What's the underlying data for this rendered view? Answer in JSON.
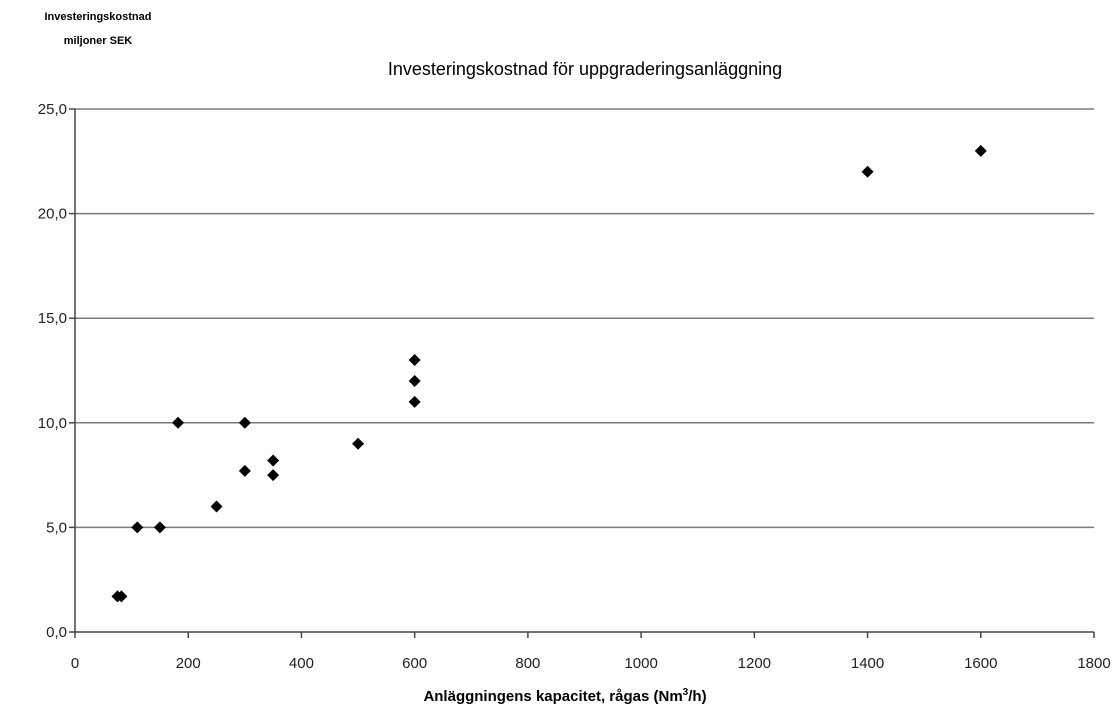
{
  "chart_data": {
    "type": "scatter",
    "title": "Investeringskostnad för uppgraderingsanläggning",
    "ylabel_lines": [
      "Investeringskostnad",
      "miljoner SEK"
    ],
    "xlabel": "Anläggningens kapacitet, rågas (Nm",
    "xlabel_sup": "3",
    "xlabel_end": "/h)",
    "xlim": [
      0,
      1800
    ],
    "ylim": [
      0,
      25
    ],
    "xticks": [
      "0",
      "200",
      "400",
      "600",
      "800",
      "1000",
      "1200",
      "1400",
      "1600",
      "1800"
    ],
    "yticks": [
      "0,0",
      "5,0",
      "10,0",
      "15,0",
      "20,0",
      "25,0"
    ],
    "grid": "horizontal",
    "marker": "diamond",
    "marker_color": "#000000",
    "points": [
      {
        "x": 75,
        "y": 1.7
      },
      {
        "x": 82,
        "y": 1.7
      },
      {
        "x": 110,
        "y": 5.0
      },
      {
        "x": 150,
        "y": 5.0
      },
      {
        "x": 182,
        "y": 10.0
      },
      {
        "x": 250,
        "y": 6.0
      },
      {
        "x": 300,
        "y": 10.0
      },
      {
        "x": 300,
        "y": 7.7
      },
      {
        "x": 350,
        "y": 8.2
      },
      {
        "x": 350,
        "y": 7.5
      },
      {
        "x": 500,
        "y": 9.0
      },
      {
        "x": 600,
        "y": 13.0
      },
      {
        "x": 600,
        "y": 12.0
      },
      {
        "x": 600,
        "y": 11.0
      },
      {
        "x": 1400,
        "y": 22.0
      },
      {
        "x": 1600,
        "y": 23.0
      }
    ]
  }
}
